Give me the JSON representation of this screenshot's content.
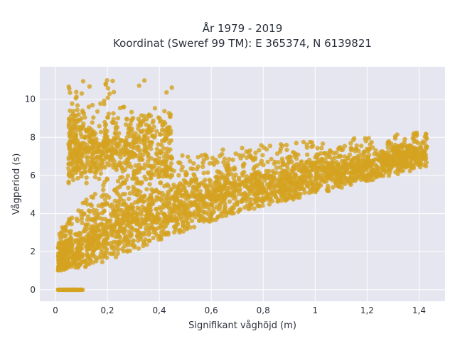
{
  "chart_data": {
    "type": "scatter",
    "title_line1": "År 1979 - 2019",
    "title_line2": "Koordinat (Sweref 99 TM): E 365374, N 6139821",
    "xlabel": "Signifikant våghöjd (m)",
    "ylabel": "Vågperiod (s)",
    "xlim": [
      -0.06,
      1.5
    ],
    "ylim": [
      -0.6,
      11.7
    ],
    "xticks": [
      0,
      0.2,
      0.4,
      0.6,
      0.8,
      1.0,
      1.2,
      1.4
    ],
    "xtick_labels": [
      "0",
      "0,2",
      "0,4",
      "0,6",
      "0,8",
      "1",
      "1,2",
      "1,4"
    ],
    "yticks": [
      0,
      2,
      4,
      6,
      8,
      10
    ],
    "ytick_labels": [
      "0",
      "2",
      "4",
      "6",
      "8",
      "10"
    ],
    "grid": true,
    "marker_color": "#d4a321",
    "background_color": "#e5e6ef",
    "distribution": {
      "main_band": {
        "x_range": [
          0.01,
          1.43
        ],
        "center": [
          [
            0.01,
            1.5
          ],
          [
            0.1,
            2.3
          ],
          [
            0.2,
            3.1
          ],
          [
            0.4,
            4.1
          ],
          [
            0.6,
            4.8
          ],
          [
            0.8,
            5.4
          ],
          [
            1.0,
            6.0
          ],
          [
            1.2,
            6.5
          ],
          [
            1.43,
            7.2
          ]
        ],
        "lower": [
          [
            0.01,
            1.0
          ],
          [
            0.1,
            1.1
          ],
          [
            0.2,
            1.5
          ],
          [
            0.4,
            2.6
          ],
          [
            0.6,
            3.6
          ],
          [
            0.8,
            4.4
          ],
          [
            1.0,
            5.0
          ],
          [
            1.2,
            5.7
          ],
          [
            1.43,
            6.4
          ]
        ],
        "upper": [
          [
            0.01,
            3.0
          ],
          [
            0.1,
            4.5
          ],
          [
            0.2,
            5.8
          ],
          [
            0.4,
            6.9
          ],
          [
            0.6,
            7.3
          ],
          [
            0.8,
            7.6
          ],
          [
            1.0,
            7.8
          ],
          [
            1.2,
            8.0
          ],
          [
            1.43,
            8.3
          ]
        ]
      },
      "swell_cluster": {
        "x_range": [
          0.05,
          0.45
        ],
        "y_range": [
          5.6,
          11.2
        ],
        "y_center": 7.6
      },
      "zero_period_points": {
        "x_range": [
          0.01,
          0.11
        ],
        "y": 0
      }
    }
  }
}
